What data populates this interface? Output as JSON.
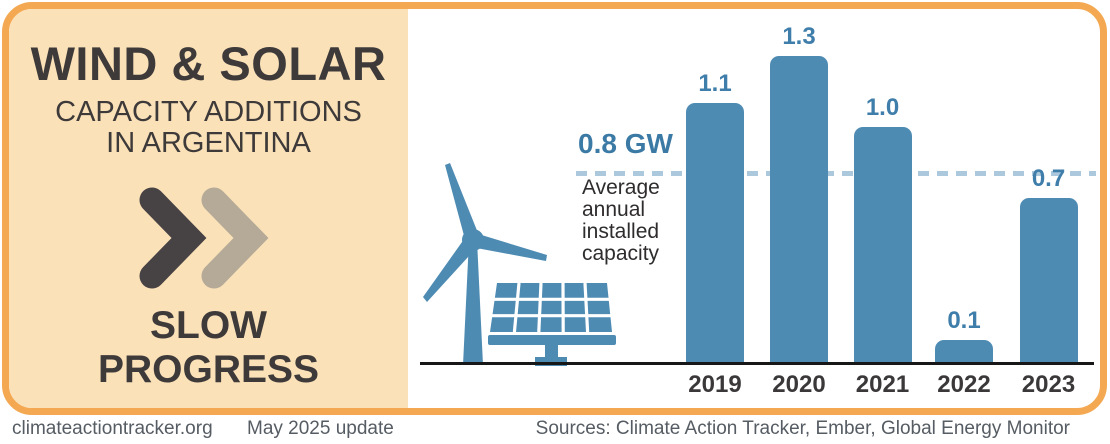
{
  "left_panel": {
    "title": "WIND & SOLAR",
    "subtitle": "CAPACITY ADDITIONS\nIN ARGENTINA",
    "verdict": "SLOW\nPROGRESS"
  },
  "chart_data": {
    "type": "bar",
    "title": "Wind & solar capacity additions in Argentina",
    "unit": "GW",
    "categories": [
      "2019",
      "2020",
      "2021",
      "2022",
      "2023"
    ],
    "values": [
      1.1,
      1.3,
      1.0,
      0.1,
      0.7
    ],
    "average_line": {
      "value": 0.8,
      "label": "0.8 GW",
      "description": "Average\nannual\ninstalled\ncapacity"
    },
    "ylim": [
      0,
      1.4
    ],
    "grid": false,
    "legend": "none",
    "bar_color": "#4E8BB3",
    "label_color": "#3F7EAA",
    "dashed_line_color": "#ABC8DD",
    "axis_color": "#171717"
  },
  "footer": {
    "site": "climateactiontracker.org",
    "update": "May 2025 update",
    "sources": "Sources: Climate Action Tracker, Ember, Global Energy Monitor"
  },
  "colors": {
    "frame_border": "#F3A851",
    "panel_background": "#FAE1B8",
    "dark_text": "#3E3A3A",
    "footer_text": "#565C63",
    "chevron_dark": "#474243",
    "chevron_light": "#B4AA97",
    "illustration_blue": "#4E8BB3"
  },
  "icons": {
    "double_chevron": "fast-forward-double-chevron",
    "wind_turbine": "wind-turbine-illustration",
    "solar_panel": "solar-panel-illustration"
  }
}
